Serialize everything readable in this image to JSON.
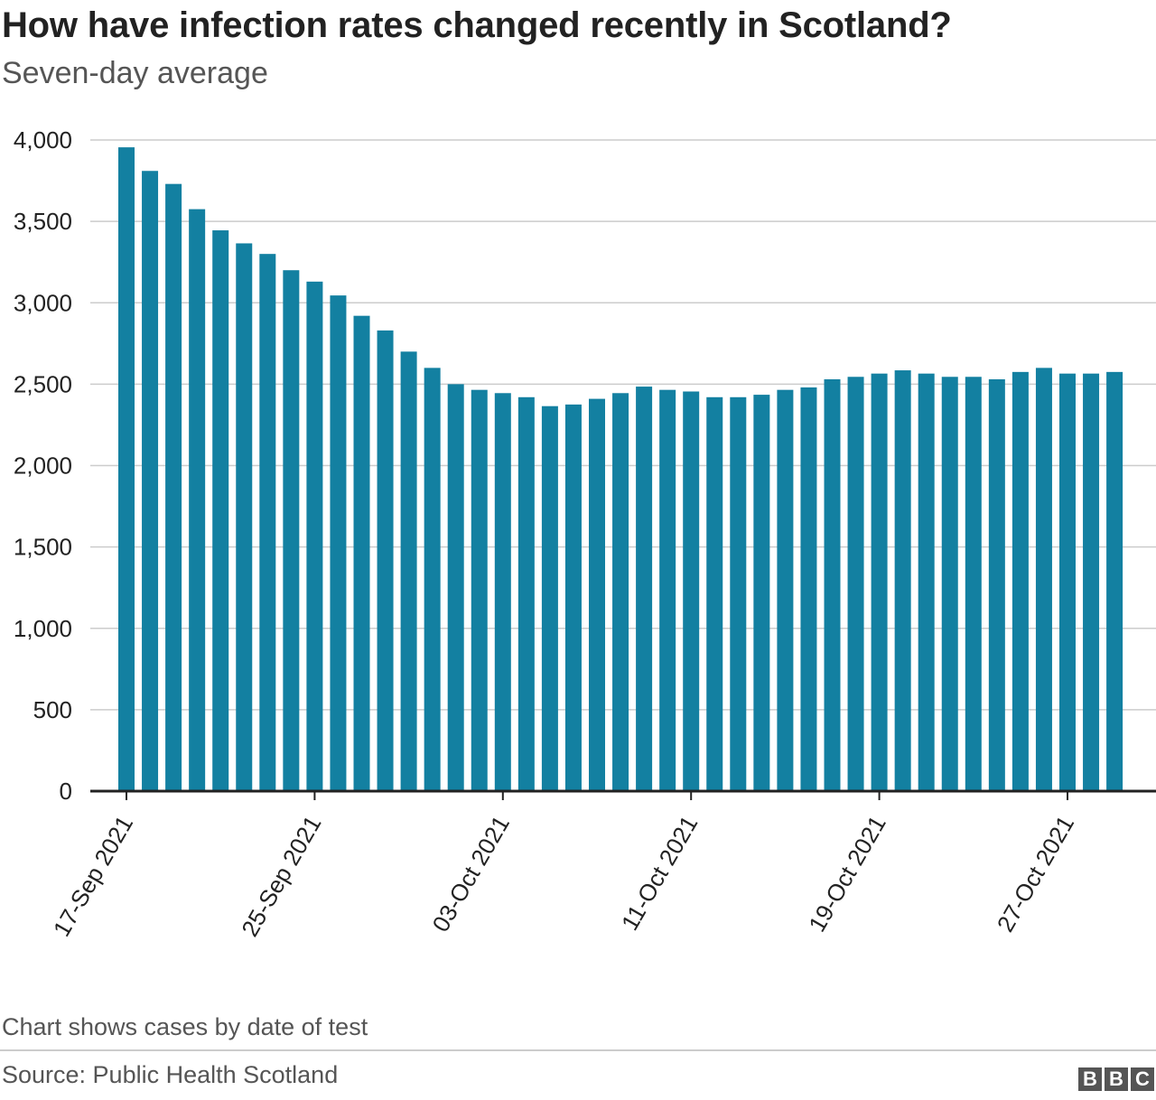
{
  "chart_data": {
    "type": "bar",
    "title": "How have infection rates changed recently in Scotland?",
    "subtitle": "Seven-day average",
    "xlabel": "",
    "ylabel": "",
    "ylim": [
      0,
      4000
    ],
    "yticks": [
      0,
      500,
      1000,
      1500,
      2000,
      2500,
      3000,
      3500,
      4000
    ],
    "ytick_labels": [
      "0",
      "500",
      "1,000",
      "1,500",
      "2,000",
      "2,500",
      "3,000",
      "3,500",
      "4,000"
    ],
    "grid": true,
    "categories": [
      "17-Sep 2021",
      "18-Sep 2021",
      "19-Sep 2021",
      "20-Sep 2021",
      "21-Sep 2021",
      "22-Sep 2021",
      "23-Sep 2021",
      "24-Sep 2021",
      "25-Sep 2021",
      "26-Sep 2021",
      "27-Sep 2021",
      "28-Sep 2021",
      "29-Sep 2021",
      "30-Sep 2021",
      "01-Oct 2021",
      "02-Oct 2021",
      "03-Oct 2021",
      "04-Oct 2021",
      "05-Oct 2021",
      "06-Oct 2021",
      "07-Oct 2021",
      "08-Oct 2021",
      "09-Oct 2021",
      "10-Oct 2021",
      "11-Oct 2021",
      "12-Oct 2021",
      "13-Oct 2021",
      "14-Oct 2021",
      "15-Oct 2021",
      "16-Oct 2021",
      "17-Oct 2021",
      "18-Oct 2021",
      "19-Oct 2021",
      "20-Oct 2021",
      "21-Oct 2021",
      "22-Oct 2021",
      "23-Oct 2021",
      "24-Oct 2021",
      "25-Oct 2021",
      "26-Oct 2021",
      "27-Oct 2021",
      "28-Oct 2021",
      "29-Oct 2021"
    ],
    "xtick_labels": [
      "17-Sep 2021",
      "25-Sep 2021",
      "03-Oct 2021",
      "11-Oct 2021",
      "19-Oct 2021",
      "27-Oct 2021"
    ],
    "series": [
      {
        "name": "Seven-day average",
        "color": "#1380A1",
        "values": [
          3955,
          3810,
          3730,
          3575,
          3445,
          3365,
          3300,
          3200,
          3130,
          3045,
          2920,
          2830,
          2700,
          2600,
          2500,
          2465,
          2445,
          2420,
          2365,
          2375,
          2410,
          2445,
          2485,
          2465,
          2455,
          2420,
          2420,
          2435,
          2465,
          2480,
          2530,
          2545,
          2565,
          2585,
          2565,
          2545,
          2545,
          2530,
          2575,
          2600,
          2565,
          2565,
          2575
        ]
      }
    ],
    "note": "Chart shows cases by date of test",
    "source": "Source: Public Health Scotland",
    "logo_letters": [
      "B",
      "B",
      "C"
    ]
  }
}
